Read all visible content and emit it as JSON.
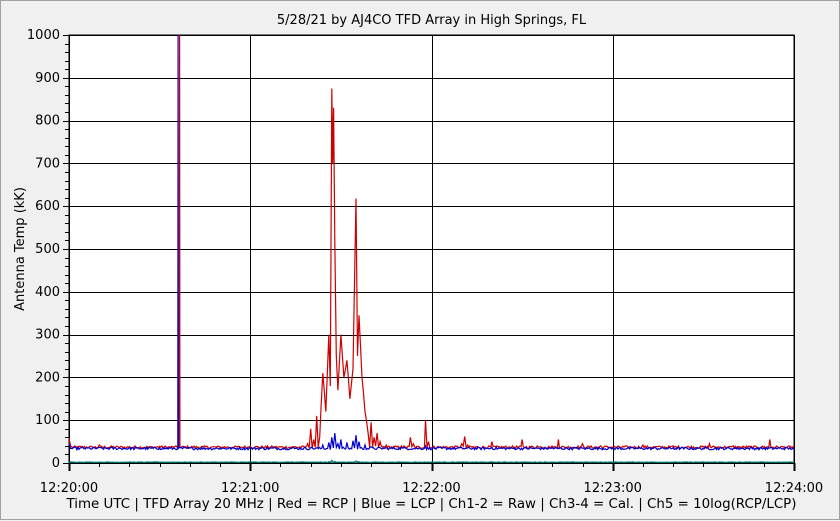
{
  "chart_data": {
    "type": "line",
    "title": "5/28/21  by  AJ4CO TFD Array  in  High Springs, FL",
    "ylabel": "Antenna Temp (kK)",
    "xlabel": "Time UTC | TFD Array 20 MHz | Red = RCP | Blue = LCP | Ch1-2 = Raw | Ch3-4 = Cal. | Ch5 = 10log(RCP/LCP)",
    "ylim": [
      0,
      1000
    ],
    "yticks": [
      "0",
      "100",
      "200",
      "300",
      "400",
      "500",
      "600",
      "700",
      "800",
      "900",
      "1000"
    ],
    "xlim_seconds_after_12_20": [
      0,
      240
    ],
    "xticks": [
      "12:20:00",
      "12:21:00",
      "12:22:00",
      "12:23:00",
      "12:24:00"
    ],
    "grid": true,
    "series": [
      {
        "name": "RCP",
        "color": "#cc0000",
        "baseline": 37,
        "points": [
          [
            0,
            58
          ],
          [
            0.5,
            40
          ],
          [
            10,
            42
          ],
          [
            19,
            36
          ],
          [
            30,
            39
          ],
          [
            36.5,
            37
          ],
          [
            36.6,
            1000
          ],
          [
            36.7,
            37
          ],
          [
            50,
            38
          ],
          [
            60,
            40
          ],
          [
            75,
            38
          ],
          [
            79,
            45
          ],
          [
            80,
            80
          ],
          [
            81,
            55
          ],
          [
            82,
            110
          ],
          [
            83,
            60
          ],
          [
            84,
            210
          ],
          [
            85,
            120
          ],
          [
            86,
            300
          ],
          [
            86.5,
            180
          ],
          [
            87,
            875
          ],
          [
            87.3,
            700
          ],
          [
            87.6,
            830
          ],
          [
            88,
            520
          ],
          [
            88.5,
            250
          ],
          [
            89,
            170
          ],
          [
            90,
            300
          ],
          [
            91,
            200
          ],
          [
            92,
            240
          ],
          [
            93,
            150
          ],
          [
            94,
            220
          ],
          [
            95,
            618
          ],
          [
            95.5,
            250
          ],
          [
            96,
            345
          ],
          [
            97,
            200
          ],
          [
            98,
            120
          ],
          [
            99,
            70
          ],
          [
            100,
            95
          ],
          [
            101,
            60
          ],
          [
            102,
            70
          ],
          [
            103,
            50
          ],
          [
            105,
            42
          ],
          [
            110,
            40
          ],
          [
            113,
            60
          ],
          [
            114,
            45
          ],
          [
            118,
            100
          ],
          [
            119,
            50
          ],
          [
            130,
            45
          ],
          [
            131,
            62
          ],
          [
            132,
            42
          ],
          [
            140,
            50
          ],
          [
            150,
            55
          ],
          [
            155,
            40
          ],
          [
            162,
            55
          ],
          [
            170,
            45
          ],
          [
            176,
            40
          ],
          [
            190,
            42
          ],
          [
            200,
            40
          ],
          [
            212,
            45
          ],
          [
            220,
            40
          ],
          [
            232,
            55
          ],
          [
            240,
            38
          ]
        ]
      },
      {
        "name": "LCP",
        "color": "#0000cc",
        "baseline": 34,
        "points": [
          [
            0,
            45
          ],
          [
            0.5,
            34
          ],
          [
            10,
            36
          ],
          [
            19,
            33
          ],
          [
            30,
            35
          ],
          [
            36,
            34
          ],
          [
            36.1,
            1000
          ],
          [
            36.2,
            34
          ],
          [
            50,
            35
          ],
          [
            60,
            36
          ],
          [
            75,
            34
          ],
          [
            80,
            36
          ],
          [
            84,
            42
          ],
          [
            86,
            48
          ],
          [
            87,
            60
          ],
          [
            88,
            70
          ],
          [
            89,
            45
          ],
          [
            90,
            55
          ],
          [
            92,
            48
          ],
          [
            94,
            52
          ],
          [
            95,
            65
          ],
          [
            96,
            50
          ],
          [
            98,
            42
          ],
          [
            100,
            38
          ],
          [
            105,
            35
          ],
          [
            110,
            36
          ],
          [
            118,
            40
          ],
          [
            130,
            36
          ],
          [
            140,
            37
          ],
          [
            160,
            36
          ],
          [
            180,
            35
          ],
          [
            200,
            36
          ],
          [
            220,
            35
          ],
          [
            240,
            34
          ]
        ]
      },
      {
        "name": "Ch5",
        "color": "#008080",
        "baseline": 2,
        "points": [
          [
            0,
            1
          ],
          [
            84,
            1
          ],
          [
            86,
            3
          ],
          [
            87,
            6
          ],
          [
            88,
            4
          ],
          [
            90,
            2
          ],
          [
            95,
            5
          ],
          [
            96,
            3
          ],
          [
            100,
            1
          ],
          [
            240,
            1
          ]
        ]
      }
    ]
  }
}
